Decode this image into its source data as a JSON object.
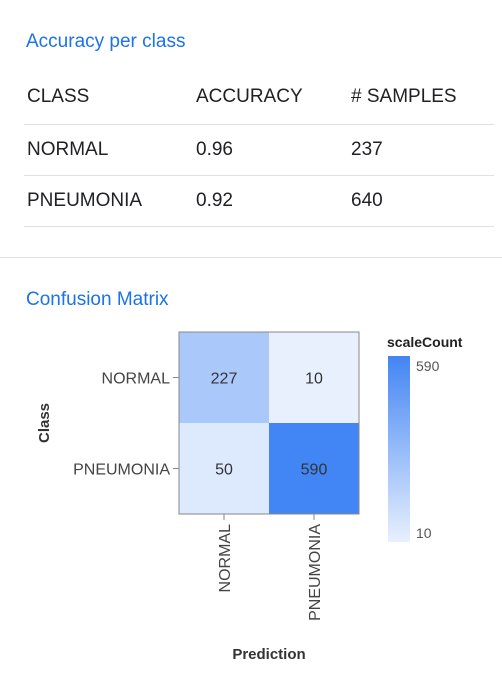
{
  "accuracy_section": {
    "title": "Accuracy per class",
    "headers": [
      "CLASS",
      "ACCURACY",
      "# SAMPLES"
    ],
    "rows": [
      {
        "class": "NORMAL",
        "accuracy": "0.96",
        "samples": "237"
      },
      {
        "class": "PNEUMONIA",
        "accuracy": "0.92",
        "samples": "640"
      }
    ]
  },
  "confusion_section": {
    "title": "Confusion Matrix"
  },
  "chart_data": {
    "type": "heatmap",
    "rows": [
      "NORMAL",
      "PNEUMONIA"
    ],
    "columns": [
      "NORMAL",
      "PNEUMONIA"
    ],
    "values": [
      [
        227,
        10
      ],
      [
        50,
        590
      ]
    ],
    "xlabel": "Prediction",
    "ylabel": "Class",
    "legend": {
      "title": "scaleCount",
      "min": 10,
      "max": 590,
      "placement": "right",
      "color_low": "#e8f0fe",
      "color_high": "#4285f4"
    }
  }
}
